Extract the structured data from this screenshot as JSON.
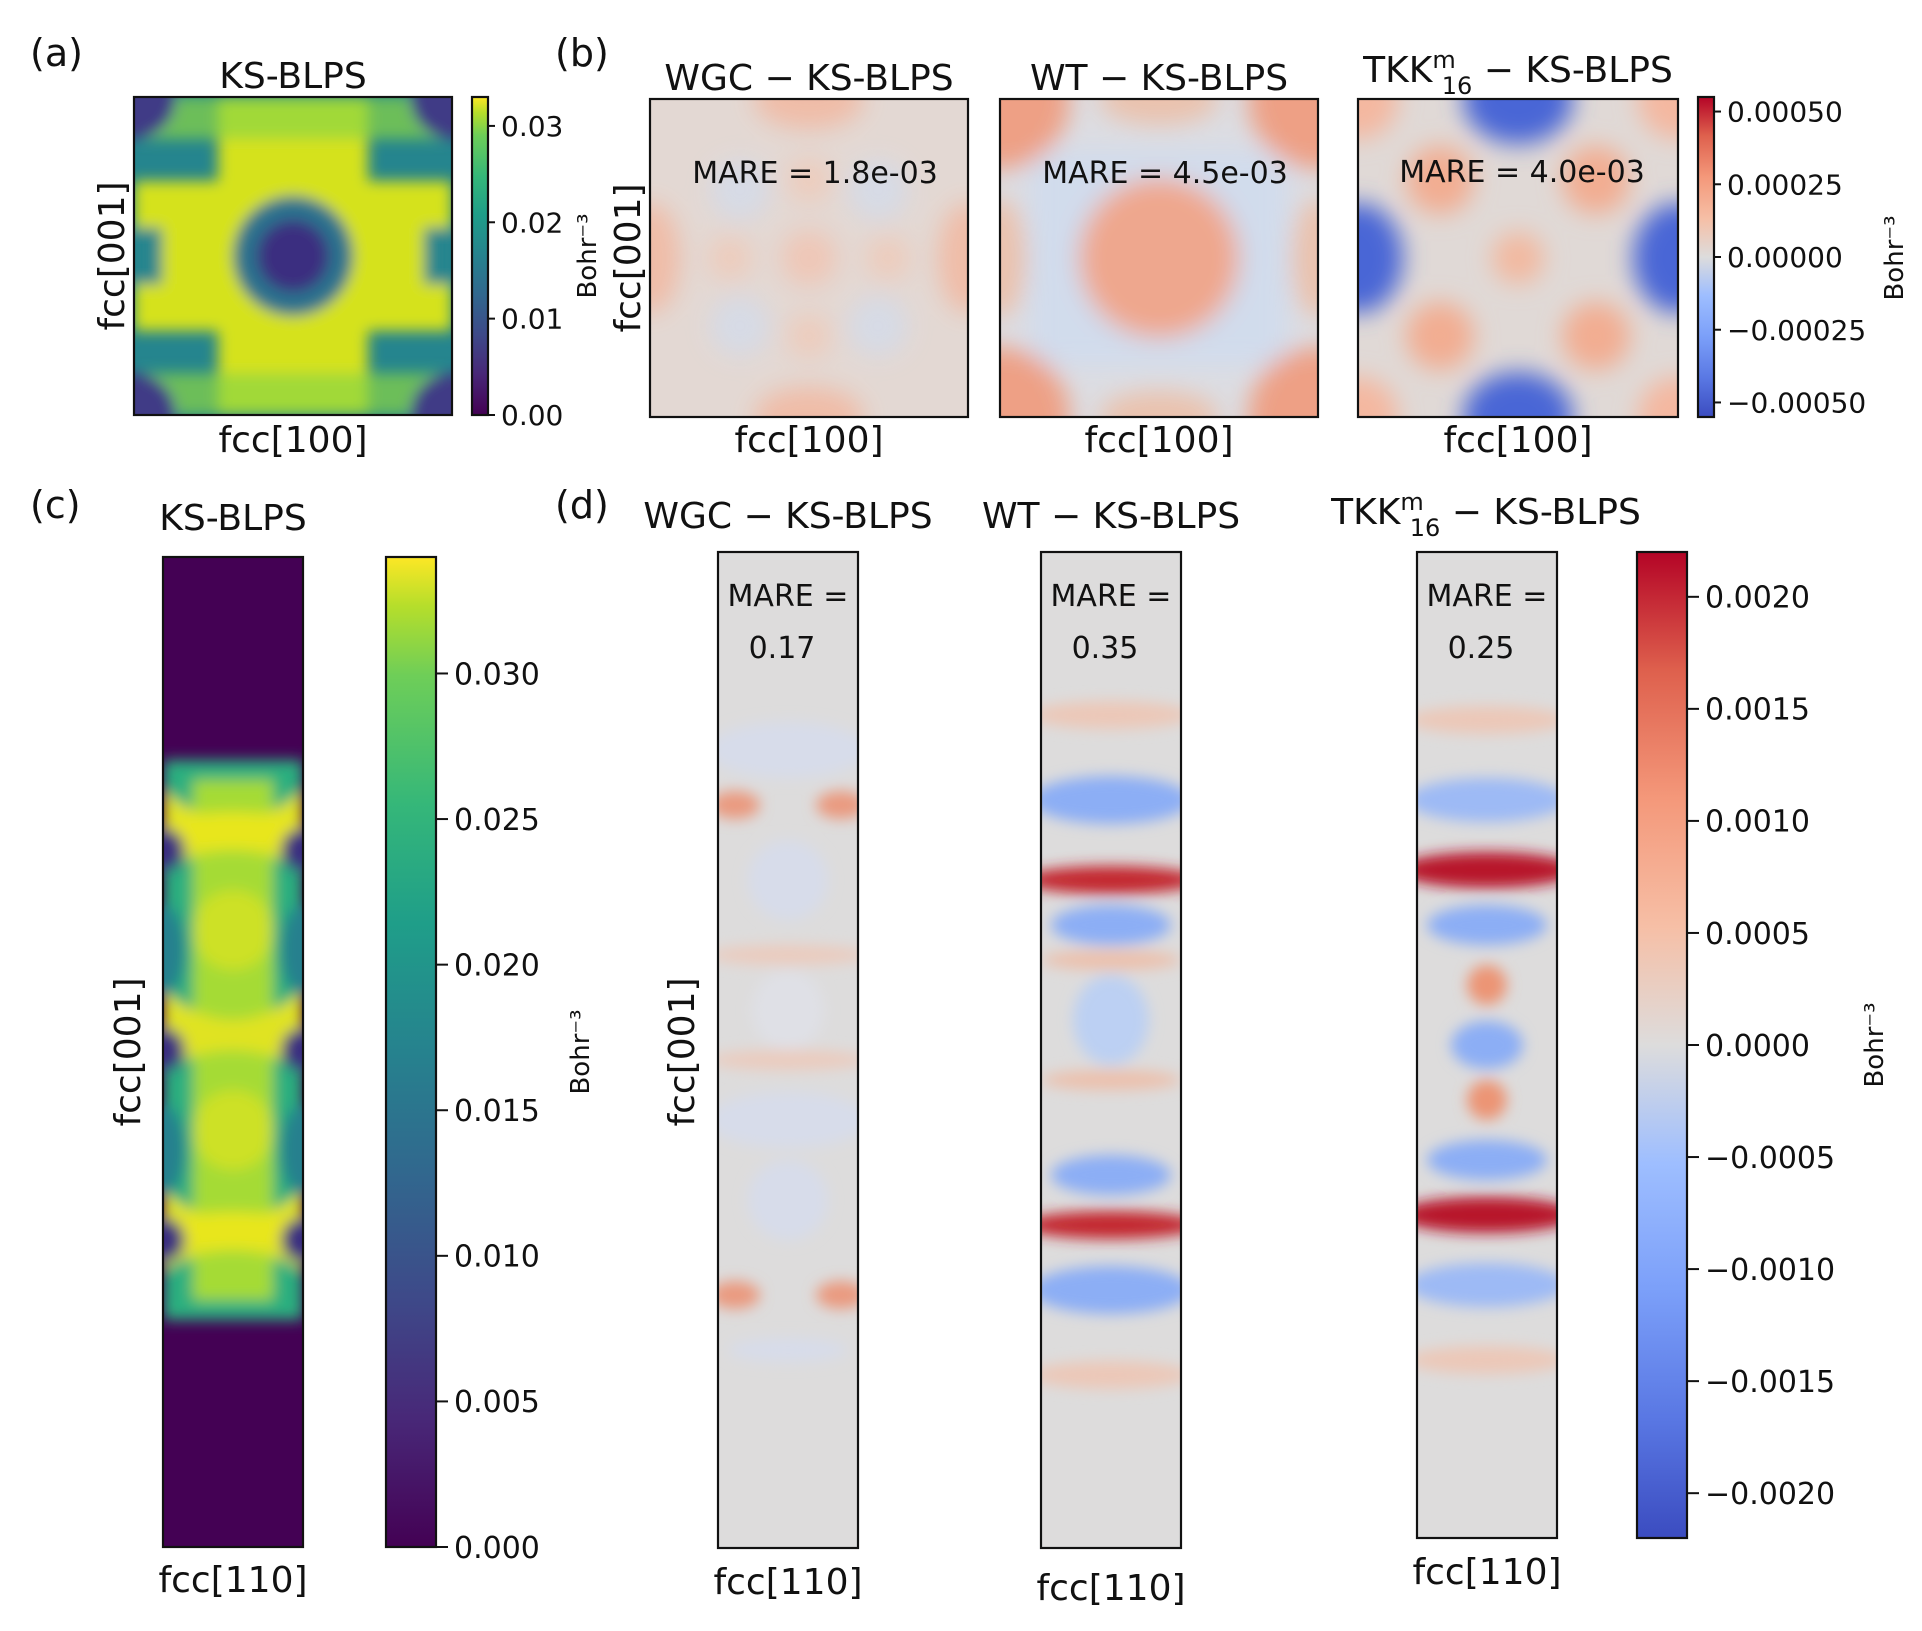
{
  "chart_data": [
    {
      "panel": "(a)",
      "type": "heatmap",
      "title": "KS-BLPS",
      "xlabel": "fcc[100]",
      "ylabel": "fcc[001]",
      "colorbar": {
        "colormap": "viridis",
        "range": [
          0,
          0.033
        ],
        "ticks": [
          "0.00",
          "0.01",
          "0.02",
          "0.03"
        ],
        "tick_values": [
          0,
          0.01,
          0.02,
          0.03
        ],
        "label": "Bohr⁻³"
      }
    },
    {
      "panel": "(b)",
      "type": "heatmap",
      "subplots": [
        {
          "title_main": "WGC − KS-BLPS",
          "annotation": "MARE = 1.8e-03",
          "xlabel": "fcc[100]",
          "ylabel": "fcc[001]"
        },
        {
          "title_main": "WT − KS-BLPS",
          "annotation": "MARE = 4.5e-03",
          "xlabel": "fcc[100]"
        },
        {
          "title_main": "TKK",
          "title_sup": "m",
          "title_sub": "16",
          "title_rest": " − KS-BLPS",
          "annotation": "MARE = 4.0e-03",
          "xlabel": "fcc[100]"
        }
      ],
      "colorbar": {
        "colormap": "coolwarm",
        "range": [
          -0.00055,
          0.00055
        ],
        "ticks": [
          "0.00050",
          "0.00025",
          "0.00000",
          "−0.00025",
          "−0.00050"
        ],
        "tick_values": [
          0.0005,
          0.00025,
          0,
          -0.00025,
          -0.0005
        ],
        "label": "Bohr⁻³"
      }
    },
    {
      "panel": "(c)",
      "type": "heatmap",
      "title": "KS-BLPS",
      "xlabel": "fcc[110]",
      "ylabel": "fcc[001]",
      "colorbar": {
        "colormap": "viridis",
        "range": [
          0,
          0.034
        ],
        "ticks": [
          "0.030",
          "0.025",
          "0.020",
          "0.015",
          "0.010",
          "0.005",
          "0.000"
        ],
        "tick_values": [
          0.03,
          0.025,
          0.02,
          0.015,
          0.01,
          0.005,
          0
        ],
        "label": "Bohr⁻³"
      }
    },
    {
      "panel": "(d)",
      "type": "heatmap",
      "subplots": [
        {
          "title_main": "WGC − KS-BLPS",
          "annotation_line1": "MARE =",
          "annotation_line2": "0.17",
          "xlabel": "fcc[110]",
          "ylabel": "fcc[001]"
        },
        {
          "title_main": "WT − KS-BLPS",
          "annotation_line1": "MARE =",
          "annotation_line2": "0.35",
          "xlabel": "fcc[110]"
        },
        {
          "title_main": "TKK",
          "title_sup": "m",
          "title_sub": "16",
          "title_rest": " − KS-BLPS",
          "annotation_line1": "MARE =",
          "annotation_line2": "0.25",
          "xlabel": "fcc[110]"
        }
      ],
      "colorbar": {
        "colormap": "coolwarm",
        "range": [
          -0.0022,
          0.0022
        ],
        "ticks": [
          "0.0020",
          "0.0015",
          "0.0010",
          "0.0005",
          "0.0000",
          "−0.0005",
          "−0.0010",
          "−0.0015",
          "−0.0020"
        ],
        "tick_values": [
          0.002,
          0.0015,
          0.001,
          0.0005,
          0,
          -0.0005,
          -0.001,
          -0.0015,
          -0.002
        ],
        "label": "Bohr⁻³"
      }
    }
  ]
}
